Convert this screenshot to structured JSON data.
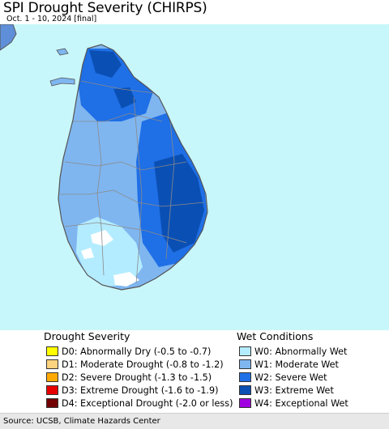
{
  "title": "SPI Drought Severity (CHIRPS)",
  "subtitle": "Oct. 1 - 10, 2024 [final]",
  "map": {
    "colors": {
      "sea": "#c8f7fb",
      "land_outline": "#555555",
      "district_lines": "#8a8a8a",
      "normal": "#ffffff",
      "W0": "#b4ecff",
      "W1": "#7fb6f0",
      "W2": "#1f6fe6",
      "W3": "#0a4fb4",
      "mainland_india": "#5f8fd8"
    }
  },
  "legend": {
    "drought": {
      "heading": "Drought Severity",
      "items": [
        {
          "code": "D0",
          "label": "D0: Abnormally Dry (-0.5 to -0.7)",
          "color": "#ffff00"
        },
        {
          "code": "D1",
          "label": "D1: Moderate Drought (-0.8 to -1.2)",
          "color": "#fcd37f"
        },
        {
          "code": "D2",
          "label": "D2: Severe Drought (-1.3 to -1.5)",
          "color": "#ffaa00"
        },
        {
          "code": "D3",
          "label": "D3: Extreme Drought (-1.6 to -1.9)",
          "color": "#e60000"
        },
        {
          "code": "D4",
          "label": "D4: Exceptional Drought (-2.0 or less)",
          "color": "#730000"
        }
      ]
    },
    "wet": {
      "heading": "Wet Conditions",
      "items": [
        {
          "code": "W0",
          "label": "W0: Abnormally Wet",
          "color": "#b4ecff"
        },
        {
          "code": "W1",
          "label": "W1: Moderate Wet",
          "color": "#7fb6f0"
        },
        {
          "code": "W2",
          "label": "W2: Severe Wet",
          "color": "#1f6fe6"
        },
        {
          "code": "W3",
          "label": "W3: Extreme Wet",
          "color": "#0a4fb4"
        },
        {
          "code": "W4",
          "label": "W4: Exceptional Wet",
          "color": "#a000e0"
        }
      ]
    }
  },
  "source": "Source: UCSB, Climate Hazards Center"
}
